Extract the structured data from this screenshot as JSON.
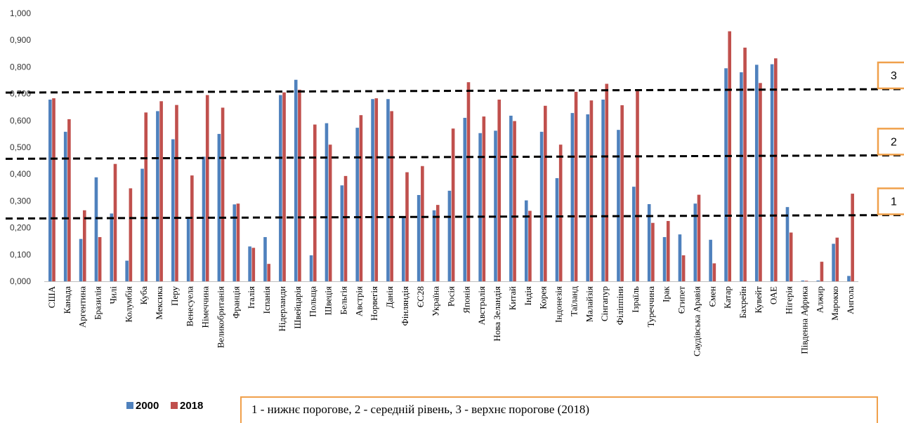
{
  "chart_data": {
    "type": "bar",
    "categories": [
      "США",
      "Канада",
      "Аргентина",
      "Бразилія",
      "Чилі",
      "Колумбія",
      "Куба",
      "Мексика",
      "Перу",
      "Венесуела",
      "Німеччина",
      "Великобританія",
      "Франція",
      "Італія",
      "Іспанія",
      "Нідерланди",
      "Швейцарія",
      "Польща",
      "Швеція",
      "Бельгія",
      "Австрія",
      "Норвегія",
      "Данія",
      "Фінляндія",
      "ЄС28",
      "Україна",
      "Росія",
      "Японія",
      "Австралія",
      "Нова Зеландія",
      "Китай",
      "Індія",
      "Корея",
      "Індонезія",
      "Таїланд",
      "Малайзія",
      "Сінгапур",
      "Філіппіни",
      "Ізраїль",
      "Туреччина",
      "Ірак",
      "Єгипет",
      "Саудівська Аравія",
      "Ємен",
      "Катар",
      "Бахрейн",
      "Кувейт",
      "ОАЕ",
      "Нігерія",
      "Південна Африка",
      "Алжир",
      "Марокко",
      "Ангола"
    ],
    "series": [
      {
        "name": "2000",
        "color": "#4f81bd",
        "values": [
          0.678,
          0.558,
          0.158,
          0.388,
          0.253,
          0.077,
          0.42,
          0.635,
          0.53,
          0.24,
          0.465,
          0.55,
          0.287,
          0.13,
          0.165,
          0.695,
          0.752,
          0.097,
          0.59,
          0.358,
          0.573,
          0.68,
          0.68,
          0.24,
          0.322,
          0.265,
          0.338,
          0.61,
          0.553,
          0.562,
          0.618,
          0.302,
          0.558,
          0.385,
          0.628,
          0.623,
          0.678,
          0.565,
          0.353,
          0.288,
          0.165,
          0.175,
          0.29,
          0.155,
          0.795,
          0.78,
          0.808,
          0.81,
          0.277,
          0.003,
          0.003,
          0.14,
          0.02
        ]
      },
      {
        "name": "2018",
        "color": "#c0504d",
        "values": [
          0.683,
          0.605,
          0.265,
          0.165,
          0.438,
          0.347,
          0.63,
          0.672,
          0.658,
          0.395,
          0.695,
          0.648,
          0.29,
          0.125,
          0.065,
          0.705,
          0.715,
          0.585,
          0.51,
          0.393,
          0.62,
          0.683,
          0.635,
          0.407,
          0.43,
          0.285,
          0.57,
          0.743,
          0.615,
          0.678,
          0.598,
          0.263,
          0.655,
          0.51,
          0.707,
          0.675,
          0.737,
          0.657,
          0.712,
          0.218,
          0.225,
          0.097,
          0.323,
          0.067,
          0.933,
          0.872,
          0.74,
          0.832,
          0.182,
          0.002,
          0.073,
          0.163,
          0.327
        ]
      }
    ],
    "ylim": [
      0,
      1.0
    ],
    "yticks": [
      "0,000",
      "0,100",
      "0,200",
      "0,300",
      "0,400",
      "0,500",
      "0,600",
      "0,700",
      "0,800",
      "0,900",
      "1,000"
    ],
    "thresholds": [
      {
        "label": "1",
        "value": 0.242
      },
      {
        "label": "2",
        "value": 0.465
      },
      {
        "label": "3",
        "value": 0.712
      }
    ],
    "legend_position": "bottom-left",
    "grid": false
  },
  "note": "1 - нижнє порогове, 2 - середній рівень, 3 - верхнє порогове  (2018)",
  "colors": {
    "accent_box": "#f0a04b",
    "axis": "#bfbfbf"
  }
}
